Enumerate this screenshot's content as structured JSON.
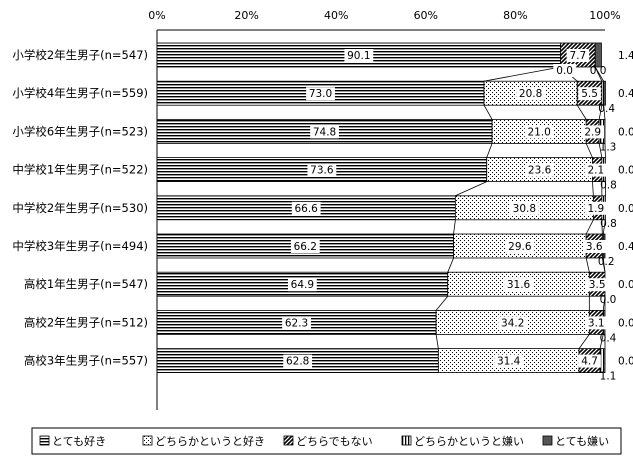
{
  "chart_data": {
    "type": "bar",
    "orientation": "horizontal",
    "stacked": "percent",
    "categories": [
      "小学校2年生男子(n=547)",
      "小学校4年生男子(n=559)",
      "小学校6年生男子(n=523)",
      "中学校1年生男子(n=522)",
      "中学校2年生男子(n=530)",
      "中学校3年生男子(n=494)",
      "高校1年生男子(n=547)",
      "高校2年生男子(n=512)",
      "高校3年生男子(n=557)"
    ],
    "series": [
      {
        "name": "とても好き",
        "values": [
          90.1,
          73.0,
          74.8,
          73.6,
          66.6,
          66.2,
          64.9,
          62.3,
          62.8
        ]
      },
      {
        "name": "どちらかというと好き",
        "values": [
          0.0,
          20.8,
          21.0,
          23.6,
          30.8,
          29.6,
          31.6,
          34.2,
          31.4
        ]
      },
      {
        "name": "どちらでもない",
        "values": [
          7.7,
          5.5,
          2.9,
          2.1,
          1.9,
          3.6,
          3.5,
          3.1,
          4.7
        ]
      },
      {
        "name": "どちらかというと嫌い",
        "values": [
          0.0,
          0.4,
          1.3,
          0.8,
          0.8,
          0.2,
          0.0,
          0.4,
          1.1
        ]
      },
      {
        "name": "とても嫌い",
        "values": [
          1.4,
          0.4,
          0.0,
          0.0,
          0.0,
          0.4,
          0.0,
          0.0,
          0.0
        ]
      }
    ],
    "x_ticks": [
      "0%",
      "20%",
      "40%",
      "60%",
      "80%",
      "100%"
    ],
    "xlim": [
      0,
      100
    ],
    "grid": false,
    "legend_position": "bottom"
  }
}
